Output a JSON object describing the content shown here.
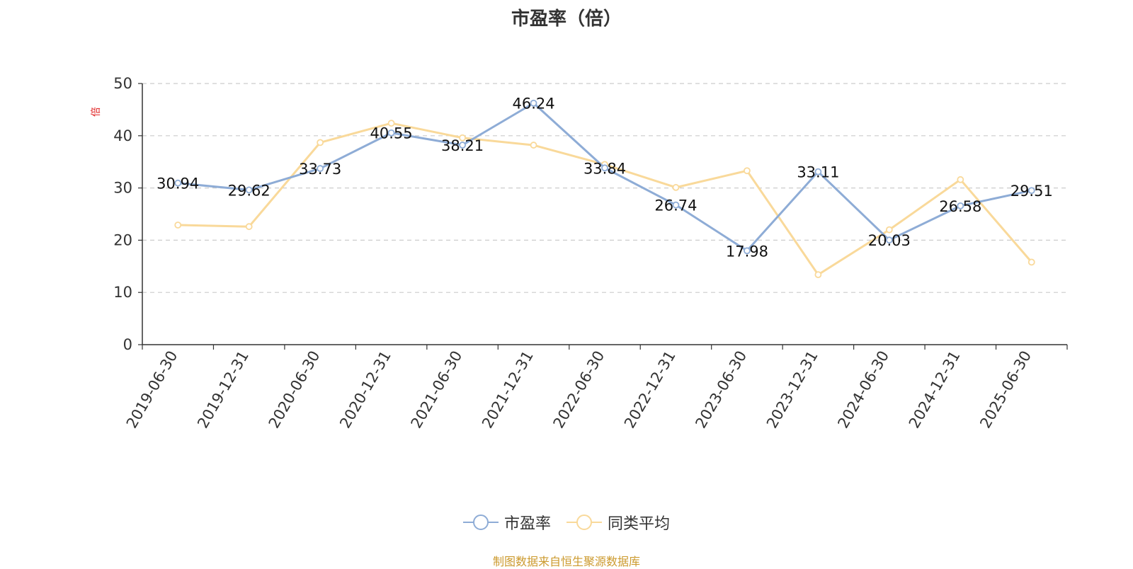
{
  "chart_data": {
    "type": "line",
    "title": "市盈率（倍）",
    "ylabel": "倍",
    "xlabel": "",
    "ylim": [
      0,
      50
    ],
    "yticks": [
      0,
      10,
      20,
      30,
      40,
      50
    ],
    "grid": true,
    "legend_position": "bottom",
    "categories": [
      "2019-06-30",
      "2019-12-31",
      "2020-06-30",
      "2020-12-31",
      "2021-06-30",
      "2021-12-31",
      "2022-06-30",
      "2022-12-31",
      "2023-06-30",
      "2023-12-31",
      "2024-06-30",
      "2024-12-31",
      "2025-06-30"
    ],
    "series": [
      {
        "name": "市盈率",
        "color": "#8EACD6",
        "show_labels": true,
        "values": [
          30.94,
          29.62,
          33.73,
          40.55,
          38.21,
          46.24,
          33.84,
          26.74,
          17.98,
          33.11,
          20.03,
          26.58,
          29.51
        ]
      },
      {
        "name": "同类平均",
        "color": "#F9D99A",
        "show_labels": false,
        "values": [
          22.9,
          22.6,
          38.7,
          42.4,
          39.6,
          38.2,
          34.5,
          30.1,
          33.3,
          13.4,
          22.0,
          31.6,
          15.8
        ]
      }
    ],
    "source_text": "制图数据来自恒生聚源数据库",
    "source_color": "#CC9A2E",
    "ylabel_color": "#E02020"
  }
}
